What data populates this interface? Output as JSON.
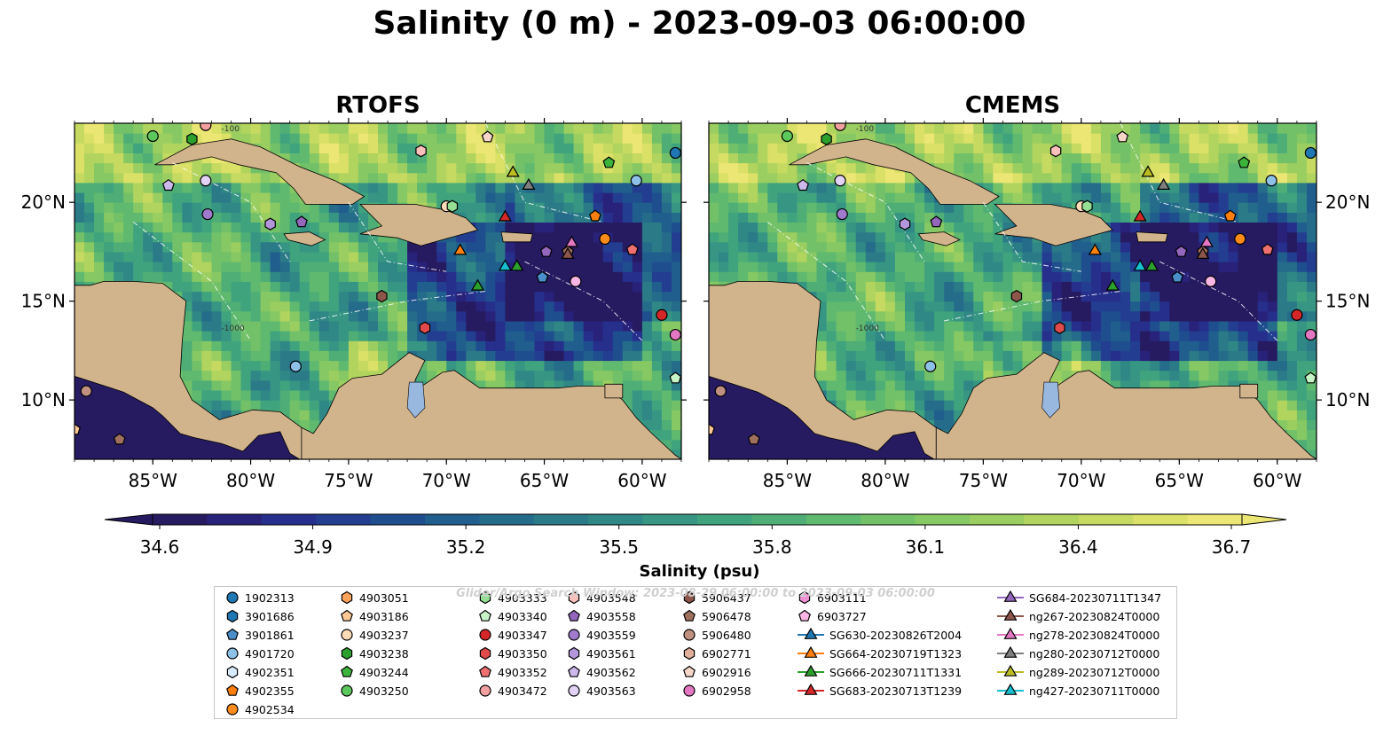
{
  "title": "Salinity (0 m) - 2023-09-03 06:00:00",
  "panels": [
    {
      "id": "rtofs",
      "title": "RTOFS"
    },
    {
      "id": "cmems",
      "title": "CMEMS"
    }
  ],
  "chart_data": [
    {
      "type": "heatmap",
      "subtype": "map",
      "panel": "RTOFS",
      "xlim": [
        -89,
        -58
      ],
      "ylim": [
        7,
        24
      ],
      "x_ticks": [
        "85°W",
        "80°W",
        "75°W",
        "70°W",
        "65°W",
        "60°W"
      ],
      "y_ticks": [
        "20°N",
        "15°N",
        "10°N"
      ],
      "y_tick_side": "left",
      "variable": "Salinity (psu)",
      "contour_labels": [
        "-100",
        "-1000"
      ]
    },
    {
      "type": "heatmap",
      "subtype": "map",
      "panel": "CMEMS",
      "xlim": [
        -89,
        -58
      ],
      "ylim": [
        7,
        24
      ],
      "x_ticks": [
        "85°W",
        "80°W",
        "75°W",
        "70°W",
        "65°W",
        "60°W"
      ],
      "y_ticks": [
        "20°N",
        "15°N",
        "10°N"
      ],
      "y_tick_side": "right",
      "variable": "Salinity (psu)",
      "contour_labels": [
        "-100",
        "-1000"
      ]
    }
  ],
  "colorbar": {
    "label": "Salinity (psu)",
    "min": 34.5,
    "max": 36.8,
    "ticks": [
      "34.6",
      "34.9",
      "35.2",
      "35.5",
      "35.8",
      "36.1",
      "36.4",
      "36.7"
    ],
    "extend": "both",
    "colors": [
      "#261a61",
      "#29227a",
      "#262f8c",
      "#233e90",
      "#1f4e8f",
      "#205e8d",
      "#256c8a",
      "#2b7a88",
      "#308886",
      "#369683",
      "#3fa37e",
      "#4eae76",
      "#5fb96f",
      "#72c168",
      "#86c863",
      "#9bce60",
      "#b1d45f",
      "#c6da61",
      "#dbe067",
      "#ece775"
    ]
  },
  "colors": {
    "land": "#d2b48c",
    "deep_ocean": "#261a61",
    "legend_border": "#c8c8c8"
  },
  "search_window_note": "Glider/Argo Search Window: 2023-08-29 06:00:00 to 2023-09-03 06:00:00",
  "legend": {
    "columns": [
      [
        {
          "label": "1902313",
          "marker": "circle",
          "color": "#1f77b4"
        },
        {
          "label": "3901686",
          "marker": "hexagon",
          "color": "#1f77b4"
        },
        {
          "label": "3901861",
          "marker": "pentagon",
          "color": "#4a8fc9"
        },
        {
          "label": "4901720",
          "marker": "circle",
          "color": "#8ec1e8"
        },
        {
          "label": "4902351",
          "marker": "hexagon",
          "color": "#d8ecfb"
        },
        {
          "label": "4902355",
          "marker": "pentagon",
          "color": "#ff7f0e"
        },
        {
          "label": "4902534",
          "marker": "circle",
          "color": "#ff8c1a"
        }
      ],
      [
        {
          "label": "4903051",
          "marker": "hexagon",
          "color": "#ffa35c"
        },
        {
          "label": "4903186",
          "marker": "pentagon",
          "color": "#ffc896"
        },
        {
          "label": "4903237",
          "marker": "circle",
          "color": "#ffdcb8"
        },
        {
          "label": "4903238",
          "marker": "hexagon",
          "color": "#2ca02c"
        },
        {
          "label": "4903244",
          "marker": "pentagon",
          "color": "#3cb43c"
        },
        {
          "label": "4903250",
          "marker": "circle",
          "color": "#5cc85c"
        }
      ],
      [
        {
          "label": "4903333",
          "marker": "hexagon",
          "color": "#96e096"
        },
        {
          "label": "4903340",
          "marker": "pentagon",
          "color": "#c8f5c8"
        },
        {
          "label": "4903347",
          "marker": "circle",
          "color": "#d62728"
        },
        {
          "label": "4903350",
          "marker": "hexagon",
          "color": "#e04a4a"
        },
        {
          "label": "4903352",
          "marker": "pentagon",
          "color": "#f07070"
        },
        {
          "label": "4903472",
          "marker": "circle",
          "color": "#f5a0a0"
        }
      ],
      [
        {
          "label": "4903548",
          "marker": "hexagon",
          "color": "#fcc0bc"
        },
        {
          "label": "4903558",
          "marker": "pentagon",
          "color": "#9467bd"
        },
        {
          "label": "4903559",
          "marker": "circle",
          "color": "#a07acc"
        },
        {
          "label": "4903561",
          "marker": "hexagon",
          "color": "#b496dc"
        },
        {
          "label": "4903562",
          "marker": "pentagon",
          "color": "#cdb8ec"
        },
        {
          "label": "4903563",
          "marker": "circle",
          "color": "#e2d2f6"
        }
      ],
      [
        {
          "label": "5906437",
          "marker": "hexagon",
          "color": "#8c564b"
        },
        {
          "label": "5906478",
          "marker": "pentagon",
          "color": "#a0705e"
        },
        {
          "label": "5906480",
          "marker": "circle",
          "color": "#c09080"
        },
        {
          "label": "6902771",
          "marker": "hexagon",
          "color": "#e0b09a"
        },
        {
          "label": "6902916",
          "marker": "pentagon",
          "color": "#f5d6c8"
        },
        {
          "label": "6902958",
          "marker": "circle",
          "color": "#e377c2"
        }
      ],
      [
        {
          "label": "6903111",
          "marker": "hexagon",
          "color": "#ee90d2"
        },
        {
          "label": "6903727",
          "marker": "pentagon",
          "color": "#f7b6e4"
        },
        {
          "label": "SG630-20230826T2004",
          "marker": "triangle-line",
          "color": "#1f77b4"
        },
        {
          "label": "SG664-20230719T1323",
          "marker": "triangle-line",
          "color": "#ff7f0e"
        },
        {
          "label": "SG666-20230711T1331",
          "marker": "triangle-line",
          "color": "#2ca02c"
        },
        {
          "label": "SG683-20230713T1239",
          "marker": "triangle-line",
          "color": "#d62728"
        }
      ],
      [
        {
          "label": "SG684-20230711T1347",
          "marker": "triangle-line",
          "color": "#9467bd"
        },
        {
          "label": "ng267-20230824T0000",
          "marker": "triangle-line",
          "color": "#8c564b"
        },
        {
          "label": "ng278-20230824T0000",
          "marker": "triangle-line",
          "color": "#e377c2"
        },
        {
          "label": "ng280-20230712T0000",
          "marker": "triangle-line",
          "color": "#7f7f7f"
        },
        {
          "label": "ng289-20230712T0000",
          "marker": "triangle-line",
          "color": "#bcbd22"
        },
        {
          "label": "ng427-20230711T0000",
          "marker": "triangle-line",
          "color": "#17becf"
        }
      ]
    ]
  },
  "markers_on_map": [
    {
      "lon": -85.0,
      "lat": 23.35,
      "marker": "circle",
      "color": "#5cc85c"
    },
    {
      "lon": -83.0,
      "lat": 23.2,
      "marker": "hexagon",
      "color": "#2ca02c"
    },
    {
      "lon": -82.3,
      "lat": 23.9,
      "marker": "circle",
      "color": "#f5a0a0"
    },
    {
      "lon": -84.2,
      "lat": 20.85,
      "marker": "pentagon",
      "color": "#cdb8ec"
    },
    {
      "lon": -82.3,
      "lat": 21.1,
      "marker": "circle",
      "color": "#e2d2f6"
    },
    {
      "lon": -82.2,
      "lat": 19.4,
      "marker": "circle",
      "color": "#a07acc"
    },
    {
      "lon": -79.0,
      "lat": 18.9,
      "marker": "hexagon",
      "color": "#b496dc"
    },
    {
      "lon": -77.4,
      "lat": 19.0,
      "marker": "pentagon",
      "color": "#9467bd"
    },
    {
      "lon": -71.3,
      "lat": 22.6,
      "marker": "hexagon",
      "color": "#fcc0bc"
    },
    {
      "lon": -67.9,
      "lat": 23.3,
      "marker": "pentagon",
      "color": "#f5d6c8"
    },
    {
      "lon": -70.0,
      "lat": 19.8,
      "marker": "circle",
      "color": "#ffdcb8"
    },
    {
      "lon": -69.7,
      "lat": 19.8,
      "marker": "hexagon",
      "color": "#96e096"
    },
    {
      "lon": -61.7,
      "lat": 22.0,
      "marker": "pentagon",
      "color": "#3cb43c"
    },
    {
      "lon": -60.3,
      "lat": 21.1,
      "marker": "circle",
      "color": "#8ec1e8"
    },
    {
      "lon": -58.3,
      "lat": 22.5,
      "marker": "circle",
      "color": "#1f77b4"
    },
    {
      "lon": -62.4,
      "lat": 19.3,
      "marker": "pentagon",
      "color": "#ff7f0e"
    },
    {
      "lon": -61.9,
      "lat": 18.15,
      "marker": "circle",
      "color": "#ff8c1a"
    },
    {
      "lon": -60.5,
      "lat": 17.6,
      "marker": "pentagon",
      "color": "#f07070"
    },
    {
      "lon": -64.9,
      "lat": 17.5,
      "marker": "pentagon",
      "color": "#9467bd"
    },
    {
      "lon": -63.8,
      "lat": 17.5,
      "marker": "pentagon",
      "color": "#a0705e"
    },
    {
      "lon": -65.1,
      "lat": 16.2,
      "marker": "pentagon",
      "color": "#4a8fc9"
    },
    {
      "lon": -63.4,
      "lat": 16.0,
      "marker": "circle",
      "color": "#f7b6e4"
    },
    {
      "lon": -73.3,
      "lat": 15.25,
      "marker": "hexagon",
      "color": "#8c564b"
    },
    {
      "lon": -71.1,
      "lat": 13.65,
      "marker": "hexagon",
      "color": "#e04a4a"
    },
    {
      "lon": -59.0,
      "lat": 14.3,
      "marker": "circle",
      "color": "#d62728"
    },
    {
      "lon": -58.3,
      "lat": 13.3,
      "marker": "circle",
      "color": "#e377c2"
    },
    {
      "lon": -77.7,
      "lat": 11.7,
      "marker": "circle",
      "color": "#8ec1e8"
    },
    {
      "lon": -58.3,
      "lat": 11.1,
      "marker": "pentagon",
      "color": "#c8f5c8"
    },
    {
      "lon": -88.4,
      "lat": 10.45,
      "marker": "circle",
      "color": "#c09080"
    },
    {
      "lon": -86.7,
      "lat": 8.0,
      "marker": "pentagon",
      "color": "#a0705e"
    },
    {
      "lon": -89.0,
      "lat": 8.5,
      "marker": "pentagon",
      "color": "#ffc896"
    },
    {
      "lon": -66.6,
      "lat": 21.55,
      "marker": "triangle",
      "color": "#bcbd22"
    },
    {
      "lon": -65.8,
      "lat": 20.9,
      "marker": "triangle",
      "color": "#7f7f7f"
    },
    {
      "lon": -67.0,
      "lat": 19.3,
      "marker": "triangle",
      "color": "#d62728"
    },
    {
      "lon": -69.3,
      "lat": 17.6,
      "marker": "triangle",
      "color": "#ff7f0e"
    },
    {
      "lon": -67.0,
      "lat": 16.8,
      "marker": "triangle",
      "color": "#17becf"
    },
    {
      "lon": -66.4,
      "lat": 16.8,
      "marker": "triangle",
      "color": "#2ca02c"
    },
    {
      "lon": -63.6,
      "lat": 18.0,
      "marker": "triangle",
      "color": "#e377c2"
    },
    {
      "lon": -63.8,
      "lat": 17.4,
      "marker": "triangle",
      "color": "#8c564b"
    },
    {
      "lon": -68.4,
      "lat": 15.8,
      "marker": "triangle",
      "color": "#2ca02c"
    }
  ]
}
